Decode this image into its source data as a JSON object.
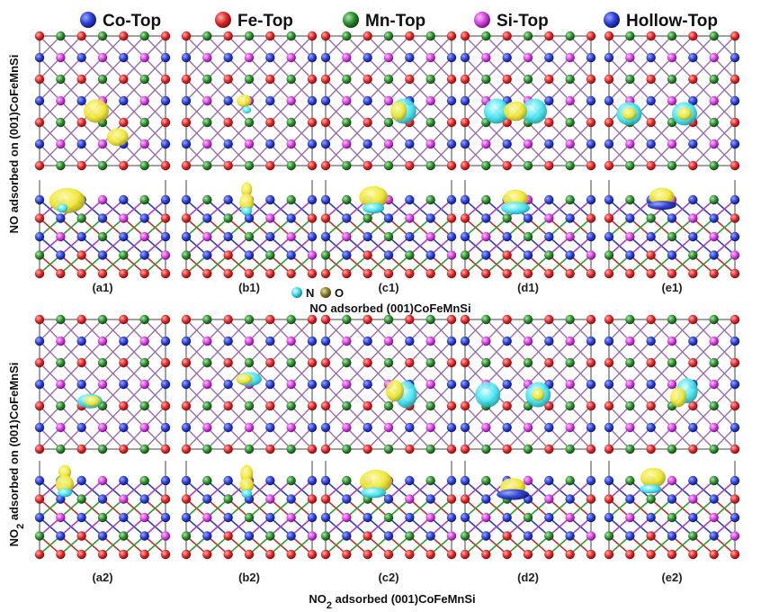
{
  "headers": [
    {
      "label": "Co-Top",
      "color": "#2b3fd6"
    },
    {
      "label": "Fe-Top",
      "color": "#e02626"
    },
    {
      "label": "Mn-Top",
      "color": "#2e8b2e"
    },
    {
      "label": "Si-Top",
      "color": "#d33fe0"
    },
    {
      "label": "Hollow-Top",
      "color": "#2b3fd6"
    }
  ],
  "rows": [
    {
      "side_label_pre": "NO adsorbed on (001)CoFeMnSi",
      "side_label_sub": "",
      "side_label_post": "",
      "caption": "NO adsorbed (001)CoFeMnSi",
      "caption_sub": "",
      "caption_post": "",
      "panels": [
        "(a1)",
        "(b1)",
        "(c1)",
        "(d1)",
        "(e1)"
      ]
    },
    {
      "side_label_pre": "NO",
      "side_label_sub": "2",
      "side_label_post": " adsorbed on (001)CoFeMnSi",
      "caption": "NO",
      "caption_sub": "2",
      "caption_post": " adsorbed (001)CoFeMnSi",
      "panels": [
        "(a2)",
        "(b2)",
        "(c2)",
        "(d2)",
        "(e2)"
      ]
    }
  ],
  "legend": [
    {
      "label": "N",
      "color": "#3fd8e6"
    },
    {
      "label": "O",
      "color": "#8a7a2a"
    }
  ],
  "atom_colors": {
    "Co": "#2b3fd6",
    "Fe": "#e02626",
    "Mn": "#2e8b2e",
    "Si": "#d33fe0"
  },
  "isosurface_colors": {
    "accumulation": "#f2ee2f",
    "depletion": "#3fe3f0"
  }
}
